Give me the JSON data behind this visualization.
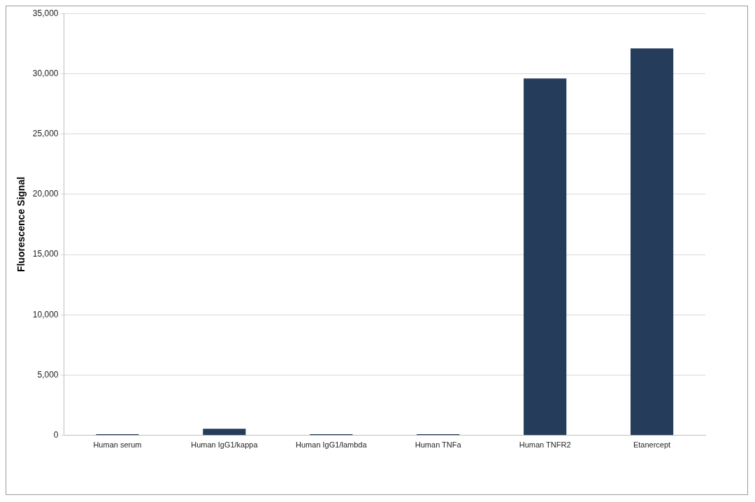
{
  "chart_data": {
    "type": "bar",
    "ylabel": "Fluorescence Signal",
    "categories": [
      "Human serum",
      "Human IgG1/kappa",
      "Human IgG1/lambda",
      "Human TNFa",
      "Human TNFR2",
      "Etanercept"
    ],
    "values": [
      100,
      550,
      100,
      100,
      29600,
      32100
    ],
    "color": "#253d5b",
    "ylim": [
      0,
      35000
    ],
    "yticks": [
      0,
      {
        "value": 5000,
        "label": "5,000"
      },
      {
        "value": 10000,
        "label": "10,000"
      },
      {
        "value": 15000,
        "label": "15,000"
      },
      {
        "value": 20000,
        "label": "20,000"
      },
      {
        "value": 25000,
        "label": "25,000"
      },
      {
        "value": 30000,
        "label": "30,000"
      },
      {
        "value": 35000,
        "label": "35,000"
      }
    ],
    "grid": "y",
    "legend": false
  }
}
